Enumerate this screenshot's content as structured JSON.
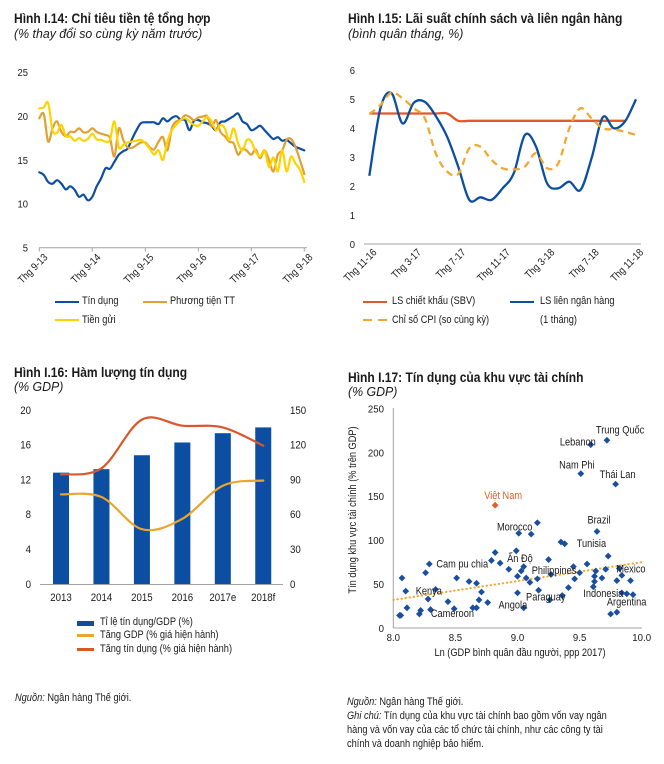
{
  "notes": {
    "left_source": {
      "prefix": "Nguồn:",
      "text": " Ngân hàng Thế giới."
    },
    "right_source": {
      "prefix": "Nguồn:",
      "text": " Ngân hàng Thế giới."
    },
    "right_note": {
      "prefix": "Ghi chú:",
      "lines": [
        " Tín dụng của khu vực tài chính bao gồm vốn vay ngân",
        "hàng và vốn vay của các tổ chức tài chính, như các công ty tài",
        "chính và doanh nghiệp bảo hiểm."
      ]
    }
  },
  "chart_data": [
    {
      "type": "line",
      "title": "Hình I.14: Chỉ tiêu tiền tệ tổng hợp",
      "subtitle": "(% thay đổi so cùng kỳ năm trước)",
      "xlabel": "",
      "ylabel": "",
      "frequency": "monthly",
      "x_tick_labels": [
        "Thg 9-13",
        "Thg 9-14",
        "Thg 9-15",
        "Thg 9-16",
        "Thg 9-17",
        "Thg 9-18"
      ],
      "x_tick_every_n_points": 12,
      "ylim": [
        5,
        25
      ],
      "y_ticks": [
        5,
        10,
        15,
        20,
        25
      ],
      "grid": false,
      "legend": "bottom",
      "series": [
        {
          "name": "Tín dụng",
          "color": "#0b4ea2",
          "values": [
            13.6,
            13.3,
            12.5,
            12.3,
            12.7,
            12.3,
            11.65,
            12.0,
            11.6,
            10.8,
            11.05,
            10.4,
            10.8,
            12.0,
            12.9,
            14.05,
            14.0,
            14.8,
            15.6,
            16.0,
            16.3,
            17.4,
            18.4,
            19.2,
            19.3,
            19.3,
            19.3,
            19.1,
            19.75,
            19.4,
            19.8,
            20.0,
            19.6,
            19.55,
            18.4,
            19.45,
            19.55,
            19.3,
            19.2,
            18.9,
            18.4,
            19.3,
            19.4,
            19.7,
            20.0,
            20.3,
            19.4,
            19.1,
            18.4,
            18.6,
            18.9,
            18.4,
            17.85,
            17.4,
            17.6,
            17.2,
            17.3,
            16.9,
            16.5,
            16.3,
            16.1
          ]
        },
        {
          "name": "Phương tiện TT",
          "color": "#e0a035",
          "values": [
            19.75,
            20.25,
            17.1,
            18.6,
            19.4,
            18.2,
            17.7,
            18.2,
            18.2,
            18.6,
            18.15,
            18.2,
            18.6,
            18.2,
            18.0,
            17.85,
            17.5,
            15.4,
            18.6,
            17.3,
            16.45,
            16.4,
            16.7,
            17.0,
            17.0,
            16.45,
            16.2,
            17.1,
            17.6,
            16.1,
            18.6,
            19.4,
            19.55,
            20.1,
            19.9,
            19.55,
            19.85,
            19.95,
            20.0,
            18.8,
            19.55,
            18.2,
            17.7,
            17.1,
            16.9,
            15.6,
            16.3,
            16.05,
            15.6,
            16.2,
            15.2,
            16.1,
            15.0,
            13.7,
            15.6,
            16.1,
            17.3,
            17.4,
            16.5,
            15.0,
            13.4
          ]
        },
        {
          "name": "Tiền gửi",
          "color": "#ffd300",
          "values": [
            20.9,
            21.0,
            21.5,
            18.4,
            18.1,
            19.0,
            17.7,
            17.7,
            17.2,
            17.5,
            17.2,
            17.4,
            18.0,
            17.35,
            17.3,
            17.1,
            17.3,
            19.4,
            16.45,
            16.7,
            17.0,
            17.1,
            17.2,
            17.3,
            16.9,
            16.3,
            15.6,
            16.1,
            15.0,
            17.1,
            18.4,
            19.0,
            19.55,
            19.75,
            19.4,
            19.0,
            18.9,
            19.4,
            19.9,
            19.4,
            18.4,
            19.0,
            18.6,
            17.3,
            18.6,
            16.9,
            16.1,
            17.3,
            17.1,
            15.95,
            15.4,
            16.1,
            14.2,
            15.3,
            13.7,
            16.1,
            13.7,
            15.4,
            14.6,
            13.9,
            12.5
          ]
        }
      ]
    },
    {
      "type": "line",
      "title": "Hình I.15: Lãi suất chính sách và liên ngân hàng",
      "subtitle": "(bình quân tháng, %)",
      "xlabel": "",
      "ylabel": "",
      "frequency": "monthly",
      "x_tick_labels": [
        "Thg 11-16",
        "Thg 3-17",
        "Thg 7-17",
        "Thg 11-17",
        "Thg 3-18",
        "Thg 7-18",
        "Thg 11-18"
      ],
      "x_tick_every_n_points": 4,
      "ylim": [
        0,
        6
      ],
      "y_ticks": [
        0,
        1,
        2,
        3,
        4,
        5,
        6
      ],
      "grid": false,
      "legend": "bottom",
      "series": [
        {
          "name": "LS chiết khấu (SBV)",
          "legend_lines": [
            "LS chiết khấu (SBV)"
          ],
          "color": "#e2592a",
          "style": "solid",
          "values": [
            4.5,
            4.5,
            4.5,
            4.5,
            4.5,
            4.5,
            4.5,
            4.5,
            4.25,
            4.25,
            4.25,
            4.25,
            4.25,
            4.25,
            4.25,
            4.25,
            4.25,
            4.25,
            4.25,
            4.25,
            4.25,
            4.25,
            4.25,
            4.25,
            null
          ]
        },
        {
          "name": "LS liên ngân hàng (1 tháng)",
          "legend_lines": [
            "LS liên ngân hàng",
            "(1 tháng)"
          ],
          "color": "#0b4ea2",
          "style": "solid",
          "values": [
            2.35,
            4.68,
            5.2,
            4.16,
            4.87,
            4.9,
            4.4,
            3.7,
            2.67,
            1.52,
            1.61,
            1.52,
            1.92,
            2.44,
            3.76,
            3.36,
            2.09,
            1.92,
            2.15,
            1.86,
            2.95,
            4.37,
            3.99,
            4.22,
            4.99
          ]
        },
        {
          "name": "Chỉ số CPI (so cùng kỳ)",
          "legend_lines": [
            "Chỉ số CPI (so cùng kỳ)"
          ],
          "color": "#f0a830",
          "style": "dashed",
          "values": [
            4.48,
            4.79,
            5.22,
            5.02,
            4.68,
            4.33,
            3.1,
            2.5,
            2.41,
            3.3,
            3.36,
            2.9,
            2.61,
            2.57,
            2.67,
            3.13,
            2.61,
            2.78,
            3.99,
            4.68,
            4.33,
            3.99,
            3.95,
            3.87,
            3.76
          ]
        }
      ]
    },
    {
      "type": "bar",
      "title": "Hình I.16: Hàm lượng tín dụng",
      "subtitle": "(% GDP)",
      "xlabel": "",
      "ylabel": "",
      "categories": [
        "2013",
        "2014",
        "2015",
        "2016",
        "2017e",
        "2018f"
      ],
      "ylim_left": [
        0,
        20
      ],
      "y_ticks_left": [
        0,
        4,
        8,
        12,
        16,
        20
      ],
      "ylim_right": [
        0,
        150
      ],
      "y_ticks_right": [
        0,
        30,
        60,
        90,
        120,
        150
      ],
      "grid": false,
      "legend": "bottom",
      "series": [
        {
          "name": "Tỉ lệ tín dụng/GDP (%)",
          "kind": "bar",
          "axis": "right",
          "color": "#0b4ea2",
          "values": [
            96,
            99,
            111,
            122,
            130,
            135
          ]
        },
        {
          "name": "Tăng GDP (% giá hiện hành)",
          "kind": "line",
          "axis": "left",
          "color": "#e9a62b",
          "values": [
            10.3,
            10.0,
            6.3,
            7.5,
            11.3,
            11.9
          ]
        },
        {
          "name": "Tăng tín dụng (% giá hiện hành)",
          "kind": "line",
          "axis": "left",
          "color": "#d9572b",
          "values": [
            12.6,
            13.3,
            18.9,
            18.2,
            18.0,
            15.9
          ]
        }
      ]
    },
    {
      "type": "scatter",
      "title": "Hình I.17: Tín dụng của khu vực tài chính",
      "subtitle": "(% GDP)",
      "xlabel": "Ln (GDP bình quân đầu người, ppp 2017)",
      "ylabel": "Tín dụng khu vực tài chính (% trên GDP)",
      "xlim": [
        8.0,
        10.0
      ],
      "x_ticks": [
        8.0,
        8.5,
        9.0,
        9.5,
        10.0
      ],
      "x_tick_labels": [
        "8.0",
        "8.5",
        "9.0",
        "9.5",
        "10.0"
      ],
      "ylim": [
        0,
        250
      ],
      "y_ticks": [
        0,
        50,
        100,
        150,
        200,
        250
      ],
      "grid": false,
      "point_color": "#1a4f9f",
      "highlight_color": "#e0602a",
      "trendline": {
        "from": [
          8.0,
          32
        ],
        "to": [
          10.0,
          75
        ],
        "style": "dotted",
        "color": "#f0a830"
      },
      "labeled_points": [
        {
          "label": "Trung Quốc",
          "x": 9.72,
          "y": 214
        },
        {
          "label": "Lebanon",
          "x": 9.59,
          "y": 209
        },
        {
          "label": "Nam Phi",
          "x": 9.51,
          "y": 176
        },
        {
          "label": "Thái Lan",
          "x": 9.79,
          "y": 164
        },
        {
          "label": "Việt Nam",
          "x": 8.82,
          "y": 140,
          "highlight": true
        },
        {
          "label": "Brazil",
          "x": 9.64,
          "y": 110
        },
        {
          "label": "Morocco",
          "x": 9.16,
          "y": 120
        },
        {
          "label": "Tunisia",
          "x": 9.38,
          "y": 96
        },
        {
          "label": "Cam pu chia",
          "x": 8.29,
          "y": 73
        },
        {
          "label": "Ấn Độ",
          "x": 8.86,
          "y": 74
        },
        {
          "label": "Philippines",
          "x": 9.05,
          "y": 70
        },
        {
          "label": "Kenya",
          "x": 8.1,
          "y": 42
        },
        {
          "label": "Cameroon",
          "x": 8.21,
          "y": 16
        },
        {
          "label": "Angola",
          "x": 9.05,
          "y": 23
        },
        {
          "label": "Paraguay",
          "x": 9.26,
          "y": 32
        },
        {
          "label": "Indonesia",
          "x": 9.61,
          "y": 47
        },
        {
          "label": "Argentina",
          "x": 9.8,
          "y": 18
        },
        {
          "label": "Mexico",
          "x": 9.82,
          "y": 68
        }
      ],
      "points": [
        [
          8.05,
          14.4
        ],
        [
          8.06,
          14.4
        ],
        [
          8.07,
          57
        ],
        [
          8.11,
          23
        ],
        [
          8.22,
          20
        ],
        [
          8.26,
          63
        ],
        [
          8.28,
          33
        ],
        [
          8.3,
          21
        ],
        [
          8.34,
          44
        ],
        [
          8.44,
          30
        ],
        [
          8.49,
          22
        ],
        [
          8.51,
          57
        ],
        [
          8.61,
          53
        ],
        [
          8.64,
          23
        ],
        [
          8.67,
          51
        ],
        [
          8.67,
          23
        ],
        [
          8.69,
          32
        ],
        [
          8.71,
          41
        ],
        [
          8.76,
          29
        ],
        [
          8.79,
          77
        ],
        [
          8.82,
          86
        ],
        [
          8.93,
          67
        ],
        [
          8.99,
          88
        ],
        [
          9.0,
          59
        ],
        [
          9.0,
          40
        ],
        [
          9.01,
          108
        ],
        [
          9.03,
          65
        ],
        [
          9.07,
          57
        ],
        [
          9.1,
          52
        ],
        [
          9.11,
          107
        ],
        [
          9.16,
          56
        ],
        [
          9.17,
          43
        ],
        [
          9.25,
          78
        ],
        [
          9.27,
          61
        ],
        [
          9.35,
          98
        ],
        [
          9.36,
          37
        ],
        [
          9.41,
          46
        ],
        [
          9.45,
          70
        ],
        [
          9.46,
          56
        ],
        [
          9.5,
          63
        ],
        [
          9.56,
          73
        ],
        [
          9.62,
          53
        ],
        [
          9.62,
          59
        ],
        [
          9.63,
          65
        ],
        [
          9.68,
          57
        ],
        [
          9.71,
          67
        ],
        [
          9.73,
          82
        ],
        [
          9.75,
          16
        ],
        [
          9.8,
          54
        ],
        [
          9.84,
          60
        ],
        [
          9.84,
          40
        ],
        [
          9.88,
          39
        ],
        [
          9.91,
          54
        ],
        [
          9.93,
          38
        ]
      ]
    }
  ]
}
